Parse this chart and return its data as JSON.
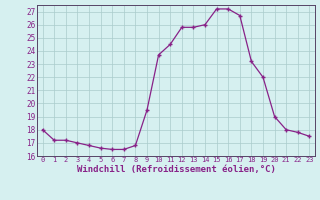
{
  "hours": [
    0,
    1,
    2,
    3,
    4,
    5,
    6,
    7,
    8,
    9,
    10,
    11,
    12,
    13,
    14,
    15,
    16,
    17,
    18,
    19,
    20,
    21,
    22,
    23
  ],
  "values": [
    18.0,
    17.2,
    17.2,
    17.0,
    16.8,
    16.6,
    16.5,
    16.5,
    16.8,
    19.5,
    23.7,
    24.5,
    25.8,
    25.8,
    26.0,
    27.2,
    27.2,
    26.7,
    23.2,
    22.0,
    19.0,
    18.0,
    17.8,
    17.5
  ],
  "line_color": "#882288",
  "marker": "+",
  "marker_size": 3.5,
  "linewidth": 0.9,
  "xlabel": "Windchill (Refroidissement éolien,°C)",
  "xlabel_fontsize": 6.5,
  "ylim": [
    16,
    27.5
  ],
  "yticks": [
    16,
    17,
    18,
    19,
    20,
    21,
    22,
    23,
    24,
    25,
    26,
    27
  ],
  "xlim": [
    -0.5,
    23.5
  ],
  "xticks": [
    0,
    1,
    2,
    3,
    4,
    5,
    6,
    7,
    8,
    9,
    10,
    11,
    12,
    13,
    14,
    15,
    16,
    17,
    18,
    19,
    20,
    21,
    22,
    23
  ],
  "xtick_fontsize": 5.0,
  "ytick_fontsize": 5.5,
  "bg_color": "#d6f0f0",
  "grid_color": "#aacccc",
  "grid_linewidth": 0.5
}
